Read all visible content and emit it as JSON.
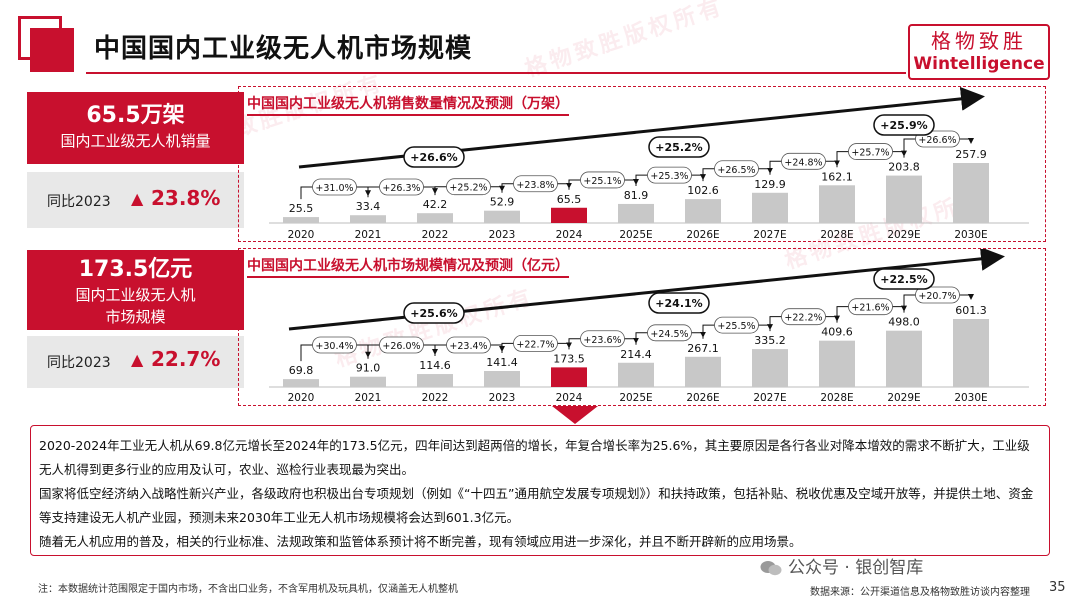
{
  "header": {
    "title": "中国国内工业级无人机市场规模",
    "brand_cn": "格物致胜",
    "brand_en": "Wintelligence",
    "watermark": "格物致胜版权所有"
  },
  "kpi_sales": {
    "value": "65.5万架",
    "label": "国内工业级无人机销量",
    "yoy_label": "同比2023",
    "yoy_arrow": "▲",
    "yoy_value": "23.8%"
  },
  "kpi_market": {
    "value": "173.5亿元",
    "label_line1": "国内工业级无人机",
    "label_line2": "市场规模",
    "yoy_label": "同比2023",
    "yoy_arrow": "▲",
    "yoy_value": "22.7%"
  },
  "chart_data": [
    {
      "type": "bar",
      "title": "中国国内工业级无人机销售数量情况及预测（万架）",
      "categories": [
        "2020",
        "2021",
        "2022",
        "2023",
        "2024",
        "2025E",
        "2026E",
        "2027E",
        "2028E",
        "2029E",
        "2030E"
      ],
      "values": [
        25.5,
        33.4,
        42.2,
        52.9,
        65.5,
        81.9,
        102.6,
        129.9,
        162.1,
        203.8,
        257.9
      ],
      "value_labels": [
        "25.5",
        "33.4",
        "42.2",
        "52.9",
        "65.5",
        "81.9",
        "102.6",
        "129.9",
        "162.1",
        "203.8",
        "257.9"
      ],
      "growth_labels": [
        "+31.0%",
        "+26.3%",
        "+25.2%",
        "+23.8%",
        "+25.1%",
        "+25.3%",
        "+26.5%",
        "+24.8%",
        "+25.7%",
        "+26.6%"
      ],
      "cagr_labels": [
        "+26.6%",
        "+25.2%",
        "+25.9%"
      ],
      "highlight_index": 4,
      "colors": {
        "bar": "#c8c8c8",
        "highlight": "#c8102e"
      },
      "ylim": [
        0,
        257.9
      ]
    },
    {
      "type": "bar",
      "title": "中国国内工业级无人机市场规模情况及预测（亿元）",
      "categories": [
        "2020",
        "2021",
        "2022",
        "2023",
        "2024",
        "2025E",
        "2026E",
        "2027E",
        "2028E",
        "2029E",
        "2030E"
      ],
      "values": [
        69.8,
        91.0,
        114.6,
        141.4,
        173.5,
        214.4,
        267.1,
        335.2,
        409.6,
        498.0,
        601.3
      ],
      "value_labels": [
        "69.8",
        "91.0",
        "114.6",
        "141.4",
        "173.5",
        "214.4",
        "267.1",
        "335.2",
        "409.6",
        "498.0",
        "601.3"
      ],
      "growth_labels": [
        "+30.4%",
        "+26.0%",
        "+23.4%",
        "+22.7%",
        "+23.6%",
        "+24.5%",
        "+25.5%",
        "+22.2%",
        "+21.6%",
        "+20.7%"
      ],
      "cagr_labels": [
        "+25.6%",
        "+24.1%",
        "+22.5%"
      ],
      "highlight_index": 4,
      "colors": {
        "bar": "#c8c8c8",
        "highlight": "#c8102e"
      },
      "ylim": [
        0,
        601.3
      ]
    }
  ],
  "summary": {
    "p1": "2020-2024年工业无人机从69.8亿元增长至2024年的173.5亿元，四年间达到超两倍的增长，年复合增长率为25.6%，其主要原因是各行各业对降本增效的需求不断扩大，工业级无人机得到更多行业的应用及认可，农业、巡检行业表现最为突出。",
    "p2": "国家将低空经济纳入战略性新兴产业，各级政府也积极出台专项规划（例如《“十四五”通用航空发展专项规划》）和扶持政策，包括补贴、税收优惠及空域开放等，并提供土地、资金等支持建设无人机产业园，预测未来2030年工业无人机市场规模将会达到601.3亿元。",
    "p3": "随着无人机应用的普及，相关的行业标准、法规政策和监管体系预计将不断完善，现有领域应用进一步深化，并且不断开辟新的应用场景。"
  },
  "footer": {
    "note": "注：本数据统计范围限定于国内市场，不含出口业务，不含军用机及玩具机，仅涵盖无人机整机",
    "wechat": "公众号 · 银创智库",
    "source": "数据来源：公开渠道信息及格物致胜访谈内容整理",
    "page": "35"
  }
}
